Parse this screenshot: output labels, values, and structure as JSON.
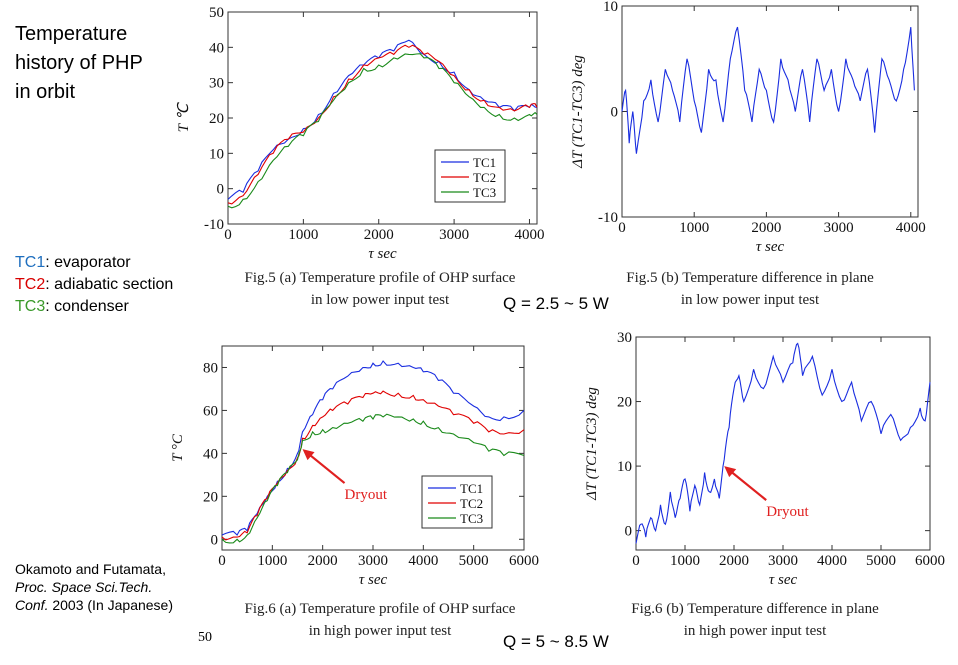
{
  "slide": {
    "title_lines": [
      "Temperature",
      "history of PHP",
      "in orbit"
    ],
    "notes": [
      {
        "tag": "TC1",
        "text": ": evaporator"
      },
      {
        "tag": "TC2",
        "text": ": adiabatic section"
      },
      {
        "tag": "TC3",
        "text": ": condenser"
      }
    ],
    "ref_line1": "Okamoto and Futamata,",
    "ref_line2": "Proc. Space Sci.Tech.",
    "ref_line3_italic": "Conf.",
    "ref_line3_rest": " 2003 (In  Japanese)",
    "q_low": "Q = 2.5 ~ 5 W",
    "q_high": "Q = 5 ~ 8.5 W",
    "stray_text": "50",
    "series_colors": {
      "TC1": "#1a2ee0",
      "TC2": "#e00000",
      "TC3": "#1a8a1a",
      "dT": "#1a2ee0",
      "arrow": "#e02020"
    }
  },
  "chart_data": [
    {
      "id": "fig5a",
      "type": "line",
      "caption_line1": "Fig.5 (a) Temperature profile of OHP surface",
      "caption_line2": "in low power input test",
      "xlabel": "τ    sec",
      "ylabel": "T  ℃",
      "xlim": [
        0,
        4100
      ],
      "ylim": [
        -10,
        50
      ],
      "xticks": [
        "0",
        "1000",
        "2000",
        "3000",
        "4000"
      ],
      "yticks": [
        "-10",
        "0",
        "10",
        "20",
        "30",
        "40",
        "50"
      ],
      "legend": [
        "TC1",
        "TC2",
        "TC3"
      ],
      "legend_position": "bottom-right",
      "series": [
        {
          "name": "TC1",
          "x": [
            0,
            200,
            400,
            600,
            800,
            1000,
            1200,
            1400,
            1600,
            1800,
            2000,
            2200,
            2400,
            2600,
            2800,
            3000,
            3200,
            3400,
            3600,
            3800,
            4000,
            4100
          ],
          "values": [
            -3,
            -1,
            5,
            11,
            14,
            17,
            21,
            27,
            32,
            35,
            37,
            39,
            42,
            38,
            36,
            33,
            28,
            25,
            23,
            22,
            23,
            23
          ]
        },
        {
          "name": "TC2",
          "x": [
            0,
            200,
            400,
            600,
            800,
            1000,
            1200,
            1400,
            1600,
            1800,
            2000,
            2200,
            2400,
            2600,
            2800,
            3000,
            3200,
            3400,
            3600,
            3800,
            4000,
            4100
          ],
          "values": [
            -4,
            -2,
            4,
            10,
            14,
            16,
            20,
            26,
            31,
            35,
            37,
            38,
            40,
            38,
            36,
            32,
            28,
            25,
            23,
            22,
            23,
            23
          ]
        },
        {
          "name": "TC3",
          "x": [
            0,
            200,
            400,
            600,
            800,
            1000,
            1200,
            1400,
            1600,
            1800,
            2000,
            2200,
            2400,
            2600,
            2800,
            3000,
            3200,
            3400,
            3600,
            3800,
            4000,
            4100
          ],
          "values": [
            -5,
            -3,
            2,
            8,
            12,
            15,
            19,
            25,
            30,
            34,
            35,
            37,
            38,
            37,
            34,
            30,
            26,
            23,
            21,
            20,
            21,
            21
          ]
        }
      ]
    },
    {
      "id": "fig5b",
      "type": "line",
      "caption_line1": "Fig.5 (b) Temperature difference in plane",
      "caption_line2": "in low power input test",
      "xlabel": "τ    sec",
      "ylabel": "ΔT (TC1-TC3)   deg",
      "xlim": [
        0,
        4100
      ],
      "ylim": [
        -10,
        10
      ],
      "xticks": [
        "0",
        "1000",
        "2000",
        "3000",
        "4000"
      ],
      "yticks": [
        "-10",
        "0",
        "10"
      ],
      "series": [
        {
          "name": "",
          "x": [
            0,
            50,
            100,
            150,
            200,
            300,
            400,
            500,
            600,
            700,
            800,
            900,
            1000,
            1100,
            1200,
            1300,
            1400,
            1500,
            1600,
            1700,
            1800,
            1900,
            2000,
            2100,
            2200,
            2300,
            2400,
            2500,
            2600,
            2700,
            2800,
            2900,
            3000,
            3100,
            3200,
            3300,
            3400,
            3500,
            3600,
            3700,
            3800,
            3900,
            4000,
            4050
          ],
          "values": [
            0,
            2,
            -3,
            0,
            -4,
            1,
            3,
            -1,
            4,
            2,
            -1,
            5,
            1,
            -2,
            4,
            3,
            -1,
            5,
            8,
            2,
            -1,
            4,
            2,
            -1,
            5,
            3,
            0,
            4,
            -1,
            5,
            2,
            4,
            0,
            5,
            3,
            1,
            4,
            -2,
            5,
            3,
            1,
            4,
            8,
            2
          ]
        }
      ]
    },
    {
      "id": "fig6a",
      "type": "line",
      "caption_line1": "Fig.6 (a) Temperature profile of OHP surface",
      "caption_line2": "in high power input test",
      "xlabel": "τ    sec",
      "ylabel": "T   °C",
      "xlim": [
        0,
        6000
      ],
      "ylim": [
        -5,
        90
      ],
      "xticks": [
        "0",
        "1000",
        "2000",
        "3000",
        "4000",
        "5000",
        "6000"
      ],
      "yticks": [
        "0",
        "20",
        "40",
        "60",
        "80"
      ],
      "legend": [
        "TC1",
        "TC2",
        "TC3"
      ],
      "legend_position": "bottom-right",
      "annotation": "Dryout",
      "annotation_x": 1600,
      "annotation_y": 42,
      "series": [
        {
          "name": "TC1",
          "x": [
            0,
            300,
            500,
            700,
            900,
            1100,
            1300,
            1500,
            1600,
            1800,
            2000,
            2200,
            2500,
            2800,
            3000,
            3200,
            3500,
            3800,
            4000,
            4300,
            4600,
            5000,
            5300,
            5600,
            6000
          ],
          "values": [
            2,
            2,
            4,
            12,
            20,
            27,
            33,
            40,
            50,
            58,
            65,
            70,
            76,
            80,
            82,
            83,
            82,
            80,
            78,
            74,
            68,
            62,
            57,
            57,
            60
          ]
        },
        {
          "name": "TC2",
          "x": [
            0,
            300,
            500,
            700,
            900,
            1100,
            1300,
            1500,
            1600,
            1800,
            2000,
            2200,
            2500,
            2800,
            3000,
            3200,
            3500,
            3800,
            4000,
            4300,
            4600,
            5000,
            5300,
            5600,
            6000
          ],
          "values": [
            1,
            1,
            3,
            11,
            19,
            26,
            32,
            38,
            47,
            53,
            57,
            60,
            63,
            66,
            68,
            69,
            68,
            67,
            65,
            62,
            58,
            54,
            50,
            49,
            51
          ]
        },
        {
          "name": "TC3",
          "x": [
            0,
            300,
            500,
            700,
            900,
            1100,
            1300,
            1500,
            1600,
            1800,
            2000,
            2200,
            2500,
            2800,
            3000,
            3200,
            3500,
            3800,
            4000,
            4300,
            4600,
            5000,
            5300,
            5600,
            6000
          ],
          "values": [
            0,
            0,
            2,
            10,
            18,
            25,
            31,
            37,
            46,
            50,
            51,
            52,
            54,
            55,
            56,
            57,
            57,
            56,
            55,
            52,
            49,
            45,
            41,
            39,
            39
          ]
        }
      ]
    },
    {
      "id": "fig6b",
      "type": "line",
      "caption_line1": "Fig.6 (b) Temperature difference in plane",
      "caption_line2": "in high power input test",
      "xlabel": "τ    sec",
      "ylabel": "ΔT (TC1-TC3)   deg",
      "xlim": [
        0,
        6000
      ],
      "ylim": [
        -3,
        30
      ],
      "xticks": [
        "0",
        "1000",
        "2000",
        "3000",
        "4000",
        "5000",
        "6000"
      ],
      "yticks": [
        "0",
        "10",
        "20",
        "30"
      ],
      "annotation": "Dryout",
      "annotation_x": 1800,
      "annotation_y": 10,
      "series": [
        {
          "name": "",
          "x": [
            0,
            100,
            200,
            300,
            400,
            500,
            600,
            700,
            800,
            900,
            1000,
            1100,
            1200,
            1300,
            1400,
            1500,
            1600,
            1700,
            1800,
            1900,
            2000,
            2100,
            2200,
            2400,
            2600,
            2800,
            3000,
            3200,
            3300,
            3400,
            3600,
            3800,
            4000,
            4200,
            4400,
            4600,
            4800,
            5000,
            5200,
            5400,
            5600,
            5800,
            5900,
            6000
          ],
          "values": [
            -2,
            1,
            -1,
            2,
            0,
            4,
            1,
            6,
            2,
            5,
            8,
            3,
            7,
            4,
            9,
            6,
            8,
            5,
            11,
            16,
            22,
            24,
            20,
            25,
            22,
            27,
            23,
            26,
            29,
            24,
            27,
            21,
            25,
            20,
            23,
            17,
            20,
            15,
            18,
            14,
            16,
            19,
            17,
            23
          ]
        }
      ]
    }
  ]
}
